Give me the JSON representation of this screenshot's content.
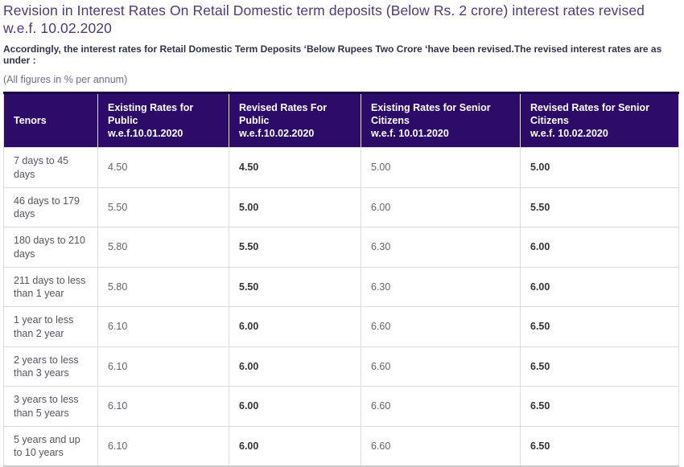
{
  "page": {
    "title": "Revision in Interest Rates On Retail Domestic term deposits (Below Rs. 2 crore) interest rates revised w.e.f. 10.02.2020",
    "subtitle": "Accordingly, the interest rates for Retail Domestic Term Deposits ‘Below Rupees Two Crore ‘have been revised.The revised interest rates are as under :",
    "note": "(All figures in % per annum)"
  },
  "colors": {
    "header_bg": "#2d0b69",
    "header_top_border": "#1b0547",
    "header_text": "#ffffff",
    "title_text": "#4c3a77",
    "subtitle_text": "#32324e",
    "note_text": "#6e6e8e",
    "existing_text": "#63636d",
    "revised_text": "#333338",
    "cell_border": "#dddddd"
  },
  "table": {
    "columns": [
      {
        "label": "Tenors",
        "sub": ""
      },
      {
        "label": "Existing Rates for Public",
        "sub": "w.e.f.10.01.2020"
      },
      {
        "label": "Revised Rates For Public",
        "sub": "w.e.f.10.02.2020"
      },
      {
        "label": "Existing Rates for Senior Citizens",
        "sub": "w.e.f. 10.01.2020"
      },
      {
        "label": "Revised Rates for Senior Citizens",
        "sub": "w.e.f. 10.02.2020"
      }
    ],
    "rows": [
      {
        "tenor": "7 days to 45 days",
        "existing_public": "4.50",
        "revised_public": "4.50",
        "existing_senior": "5.00",
        "revised_senior": "5.00"
      },
      {
        "tenor": "46 days to 179 days",
        "existing_public": "5.50",
        "revised_public": "5.00",
        "existing_senior": "6.00",
        "revised_senior": "5.50"
      },
      {
        "tenor": "180 days to 210 days",
        "existing_public": "5.80",
        "revised_public": "5.50",
        "existing_senior": "6.30",
        "revised_senior": "6.00"
      },
      {
        "tenor": "211 days to less than 1 year",
        "existing_public": "5.80",
        "revised_public": "5.50",
        "existing_senior": "6.30",
        "revised_senior": "6.00"
      },
      {
        "tenor": "1 year to less than 2 year",
        "existing_public": "6.10",
        "revised_public": "6.00",
        "existing_senior": "6.60",
        "revised_senior": "6.50"
      },
      {
        "tenor": "2 years to less than 3 years",
        "existing_public": "6.10",
        "revised_public": "6.00",
        "existing_senior": "6.60",
        "revised_senior": "6.50"
      },
      {
        "tenor": "3 years to less than 5 years",
        "existing_public": "6.10",
        "revised_public": "6.00",
        "existing_senior": "6.60",
        "revised_senior": "6.50"
      },
      {
        "tenor": "5 years and up to 10 years",
        "existing_public": "6.10",
        "revised_public": "6.00",
        "existing_senior": "6.60",
        "revised_senior": "6.50"
      }
    ]
  }
}
